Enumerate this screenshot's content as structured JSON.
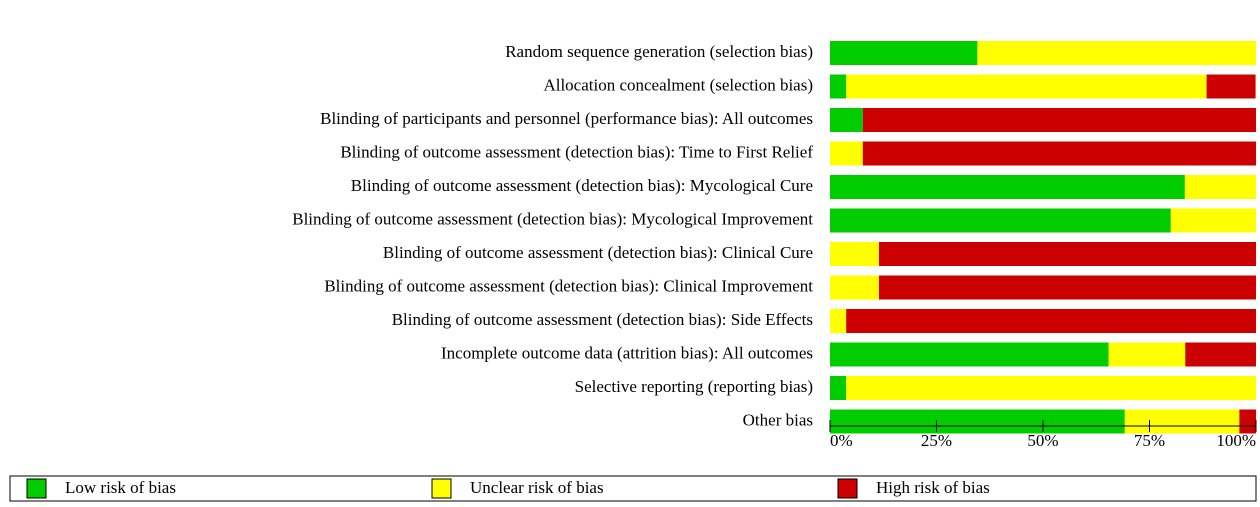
{
  "chart_data": {
    "type": "stacked-bar-horizontal",
    "categories": [
      "Random sequence generation (selection bias)",
      "Allocation concealment (selection bias)",
      "Blinding of participants and personnel (performance bias): All outcomes",
      "Blinding of outcome assessment (detection bias): Time to First Relief",
      "Blinding of outcome assessment (detection bias): Mycological Cure",
      "Blinding of outcome assessment (detection bias): Mycological Improvement",
      "Blinding of outcome assessment (detection bias): Clinical Cure",
      "Blinding of outcome assessment (detection bias): Clinical Improvement",
      "Blinding of outcome assessment (detection bias): Side Effects",
      "Incomplete outcome data (attrition bias): All outcomes",
      "Selective reporting (reporting bias)",
      "Other bias"
    ],
    "series": [
      {
        "name": "Low risk of bias",
        "color": "#00cc00",
        "values": [
          34.6,
          3.8,
          7.7,
          0,
          83.3,
          80,
          0,
          0,
          0,
          65.4,
          3.8,
          69.2
        ]
      },
      {
        "name": "Unclear risk of bias",
        "color": "#ffff00",
        "values": [
          65.4,
          84.6,
          0,
          7.7,
          16.7,
          20,
          11.5,
          11.5,
          3.8,
          18,
          96.2,
          26.9
        ]
      },
      {
        "name": "High risk of bias",
        "color": "#cc0000",
        "values": [
          0,
          11.5,
          92.3,
          92.3,
          0,
          0,
          88.5,
          88.5,
          96.2,
          16.6,
          0,
          3.9
        ]
      }
    ],
    "xlim": [
      0,
      100
    ],
    "xticks": [
      {
        "value": 0,
        "label": "0%"
      },
      {
        "value": 25,
        "label": "25%"
      },
      {
        "value": 50,
        "label": "50%"
      },
      {
        "value": 75,
        "label": "75%"
      },
      {
        "value": 100,
        "label": "100%"
      }
    ]
  }
}
